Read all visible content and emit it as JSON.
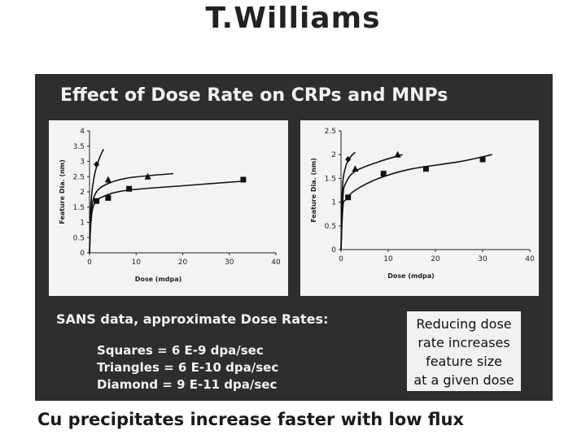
{
  "header": {
    "title": "T.Williams"
  },
  "slide": {
    "title": "Effect of Dose Rate on CRPs and MNPs",
    "sans_heading": "SANS data, approximate Dose Rates:",
    "rates": [
      "Squares = 6 E-9 dpa/sec",
      "Triangles = 6 E-10 dpa/sec",
      "Diamond = 9 E-11 dpa/sec"
    ],
    "note": [
      "Reducing dose",
      "rate increases",
      "feature size",
      "at a given dose"
    ]
  },
  "footer": {
    "text": "Cu precipitates increase faster with low flux"
  },
  "chart_data": [
    {
      "type": "scatter",
      "title": "",
      "xlabel": "Dose (mdpa)",
      "ylabel": "Feature Dia. (nm)",
      "xlim": [
        0,
        40
      ],
      "ylim": [
        0,
        4
      ],
      "xticks": [
        0,
        10,
        20,
        30,
        40
      ],
      "yticks": [
        0,
        0.5,
        1,
        1.5,
        2,
        2.5,
        3,
        3.5,
        4
      ],
      "series": [
        {
          "name": "Squares",
          "marker": "square",
          "points": [
            [
              1.5,
              1.7
            ],
            [
              4,
              1.8
            ],
            [
              8.5,
              2.1
            ],
            [
              33,
              2.4
            ]
          ]
        },
        {
          "name": "Triangles",
          "marker": "triangle",
          "points": [
            [
              4,
              2.4
            ],
            [
              12.5,
              2.5
            ]
          ]
        },
        {
          "name": "Diamond",
          "marker": "diamond",
          "points": [
            [
              1.5,
              2.9
            ]
          ]
        }
      ],
      "fits": [
        {
          "name": "Squares fit",
          "points": [
            [
              0,
              0
            ],
            [
              0.3,
              1.0
            ],
            [
              1,
              1.6
            ],
            [
              3,
              1.85
            ],
            [
              8,
              2.05
            ],
            [
              20,
              2.2
            ],
            [
              33,
              2.35
            ]
          ]
        },
        {
          "name": "Triangles fit",
          "points": [
            [
              0,
              0
            ],
            [
              0.3,
              1.2
            ],
            [
              1,
              1.85
            ],
            [
              3,
              2.2
            ],
            [
              8,
              2.45
            ],
            [
              18,
              2.6
            ]
          ]
        },
        {
          "name": "Diamond fit",
          "points": [
            [
              0,
              0
            ],
            [
              0.3,
              1.6
            ],
            [
              1,
              2.5
            ],
            [
              2,
              3.05
            ],
            [
              3,
              3.4
            ]
          ]
        }
      ]
    },
    {
      "type": "scatter",
      "title": "",
      "xlabel": "Dose (mdpa)",
      "ylabel": "Feature Dia. (nm)",
      "xlim": [
        0,
        40
      ],
      "ylim": [
        0,
        2.5
      ],
      "xticks": [
        0,
        10,
        20,
        30,
        40
      ],
      "yticks": [
        0,
        0.5,
        1,
        1.5,
        2,
        2.5
      ],
      "series": [
        {
          "name": "Squares",
          "marker": "square",
          "points": [
            [
              1.5,
              1.1
            ],
            [
              9,
              1.6
            ],
            [
              18,
              1.7
            ],
            [
              30,
              1.9
            ]
          ]
        },
        {
          "name": "Triangles",
          "marker": "triangle",
          "points": [
            [
              3,
              1.7
            ],
            [
              12,
              2.0
            ]
          ]
        },
        {
          "name": "Diamond",
          "marker": "diamond",
          "points": [
            [
              1.5,
              1.9
            ]
          ]
        }
      ],
      "fits": [
        {
          "name": "Squares fit",
          "points": [
            [
              0,
              0
            ],
            [
              0.4,
              0.9
            ],
            [
              1,
              1.05
            ],
            [
              3,
              1.25
            ],
            [
              8,
              1.5
            ],
            [
              15,
              1.7
            ],
            [
              25,
              1.85
            ],
            [
              32,
              2.0
            ]
          ]
        },
        {
          "name": "Triangles fit",
          "points": [
            [
              0,
              0
            ],
            [
              0.4,
              1.1
            ],
            [
              1,
              1.4
            ],
            [
              3,
              1.65
            ],
            [
              8,
              1.85
            ],
            [
              13,
              2.0
            ]
          ]
        },
        {
          "name": "Diamond fit",
          "points": [
            [
              0,
              0
            ],
            [
              0.3,
              1.3
            ],
            [
              1,
              1.75
            ],
            [
              2,
              1.95
            ],
            [
              3,
              2.05
            ]
          ]
        }
      ]
    }
  ]
}
